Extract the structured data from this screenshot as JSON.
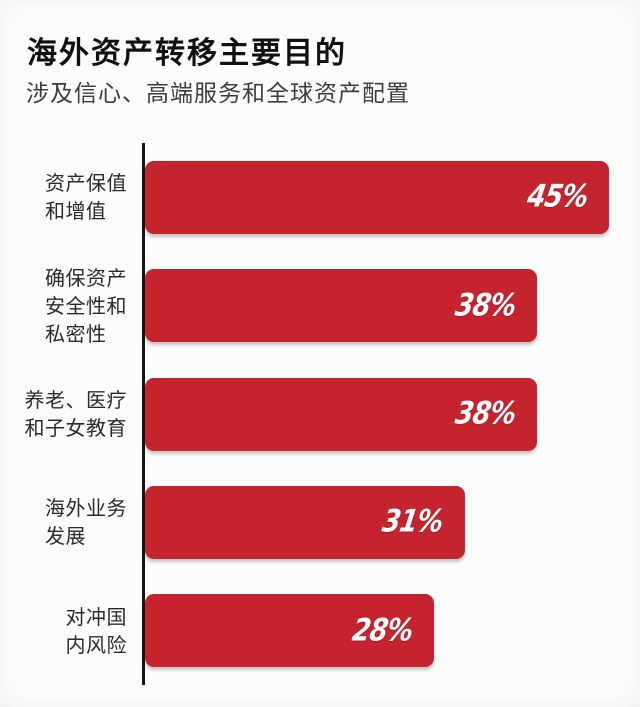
{
  "chart_data": {
    "type": "bar",
    "orientation": "horizontal",
    "title": "海外资产转移主要目的",
    "subtitle": "涉及信心、高端服务和全球资产配置",
    "categories": [
      "资产保值和增值",
      "确保资产安全性和私密性",
      "养老、医疗和子女教育",
      "海外业务发展",
      "对冲国内风险"
    ],
    "values": [
      45,
      38,
      38,
      31,
      28
    ],
    "xlabel": "",
    "ylabel": "",
    "xlim": [
      0,
      48
    ],
    "grid": false,
    "legend": false,
    "value_labels_position": "inside-right",
    "bars": [
      {
        "label_lines": [
          "资产保值",
          "和增值"
        ],
        "value": 45,
        "value_label": "45%"
      },
      {
        "label_lines": [
          "确保资产",
          "安全性和",
          "私密性"
        ],
        "value": 38,
        "value_label": "38%"
      },
      {
        "label_lines": [
          "养老、医疗",
          "和子女教育"
        ],
        "value": 38,
        "value_label": "38%"
      },
      {
        "label_lines": [
          "海外业务",
          "发展"
        ],
        "value": 31,
        "value_label": "31%"
      },
      {
        "label_lines": [
          "对冲国",
          "内风险"
        ],
        "value": 28,
        "value_label": "28%"
      }
    ],
    "colors": {
      "bar": "#c5232d",
      "value_label": "#ffffff",
      "title": "#111111",
      "subtitle": "#3d3d3d",
      "category_label": "#2b2b2b",
      "axis": "#161616",
      "background": "#fcfcfc"
    }
  }
}
